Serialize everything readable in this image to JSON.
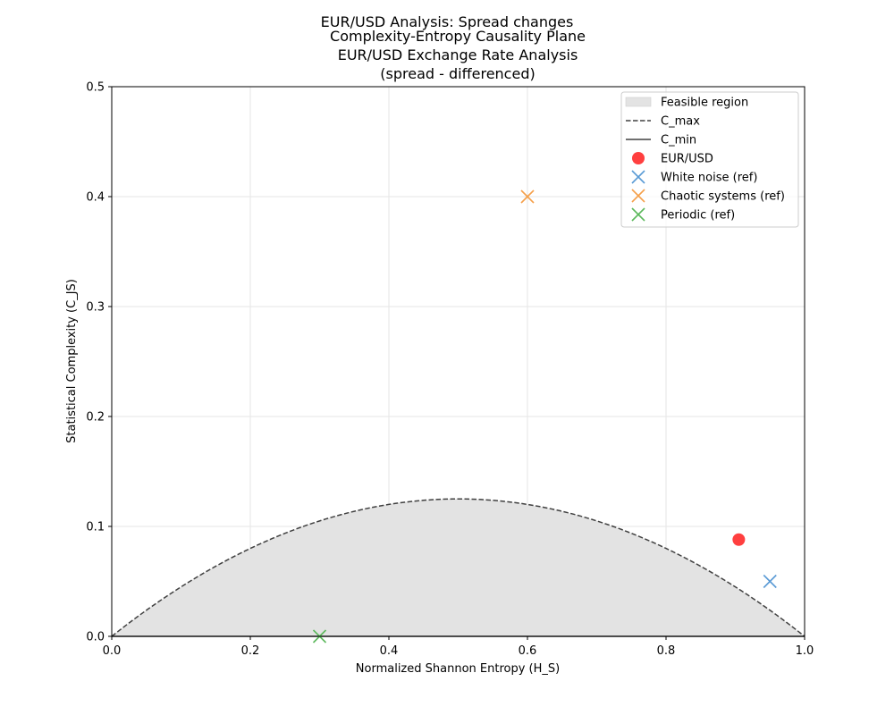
{
  "figure": {
    "suptitle": "EUR/USD Analysis: Spread changes",
    "title_lines": [
      "Complexity-Entropy Causality Plane",
      "EUR/USD Exchange Rate Analysis",
      "(spread - differenced)"
    ]
  },
  "chart_data": {
    "type": "scatter",
    "xlabel": "Normalized Shannon Entropy (H_S)",
    "ylabel": "Statistical Complexity (C_JS)",
    "xlim": [
      0.0,
      1.0
    ],
    "ylim": [
      0.0,
      0.5
    ],
    "xticks": [
      "0.0",
      "0.2",
      "0.4",
      "0.6",
      "0.8",
      "1.0"
    ],
    "yticks": [
      "0.0",
      "0.1",
      "0.2",
      "0.3",
      "0.4",
      "0.5"
    ],
    "grid": true,
    "legend_position": "upper right",
    "curves": {
      "c_max": {
        "name": "C_max",
        "formula": "0.5*H*(1-H)",
        "color": "#404040",
        "style": "dashed"
      },
      "c_min": {
        "name": "C_min",
        "y": 0.0,
        "color": "#404040",
        "style": "solid"
      },
      "feasible_region": {
        "name": "Feasible region",
        "color": "#e3e3e3"
      }
    },
    "series": [
      {
        "name": "EUR/USD",
        "marker": "circle",
        "color": "#ff2a2a",
        "points": [
          [
            0.905,
            0.088
          ]
        ]
      },
      {
        "name": "White noise (ref)",
        "marker": "x",
        "color": "#5a9bd5",
        "points": [
          [
            0.95,
            0.05
          ]
        ]
      },
      {
        "name": "Chaotic systems (ref)",
        "marker": "x",
        "color": "#f5a04a",
        "points": [
          [
            0.6,
            0.4
          ]
        ]
      },
      {
        "name": "Periodic (ref)",
        "marker": "x",
        "color": "#5cb85c",
        "points": [
          [
            0.3,
            0.0
          ]
        ]
      }
    ]
  }
}
